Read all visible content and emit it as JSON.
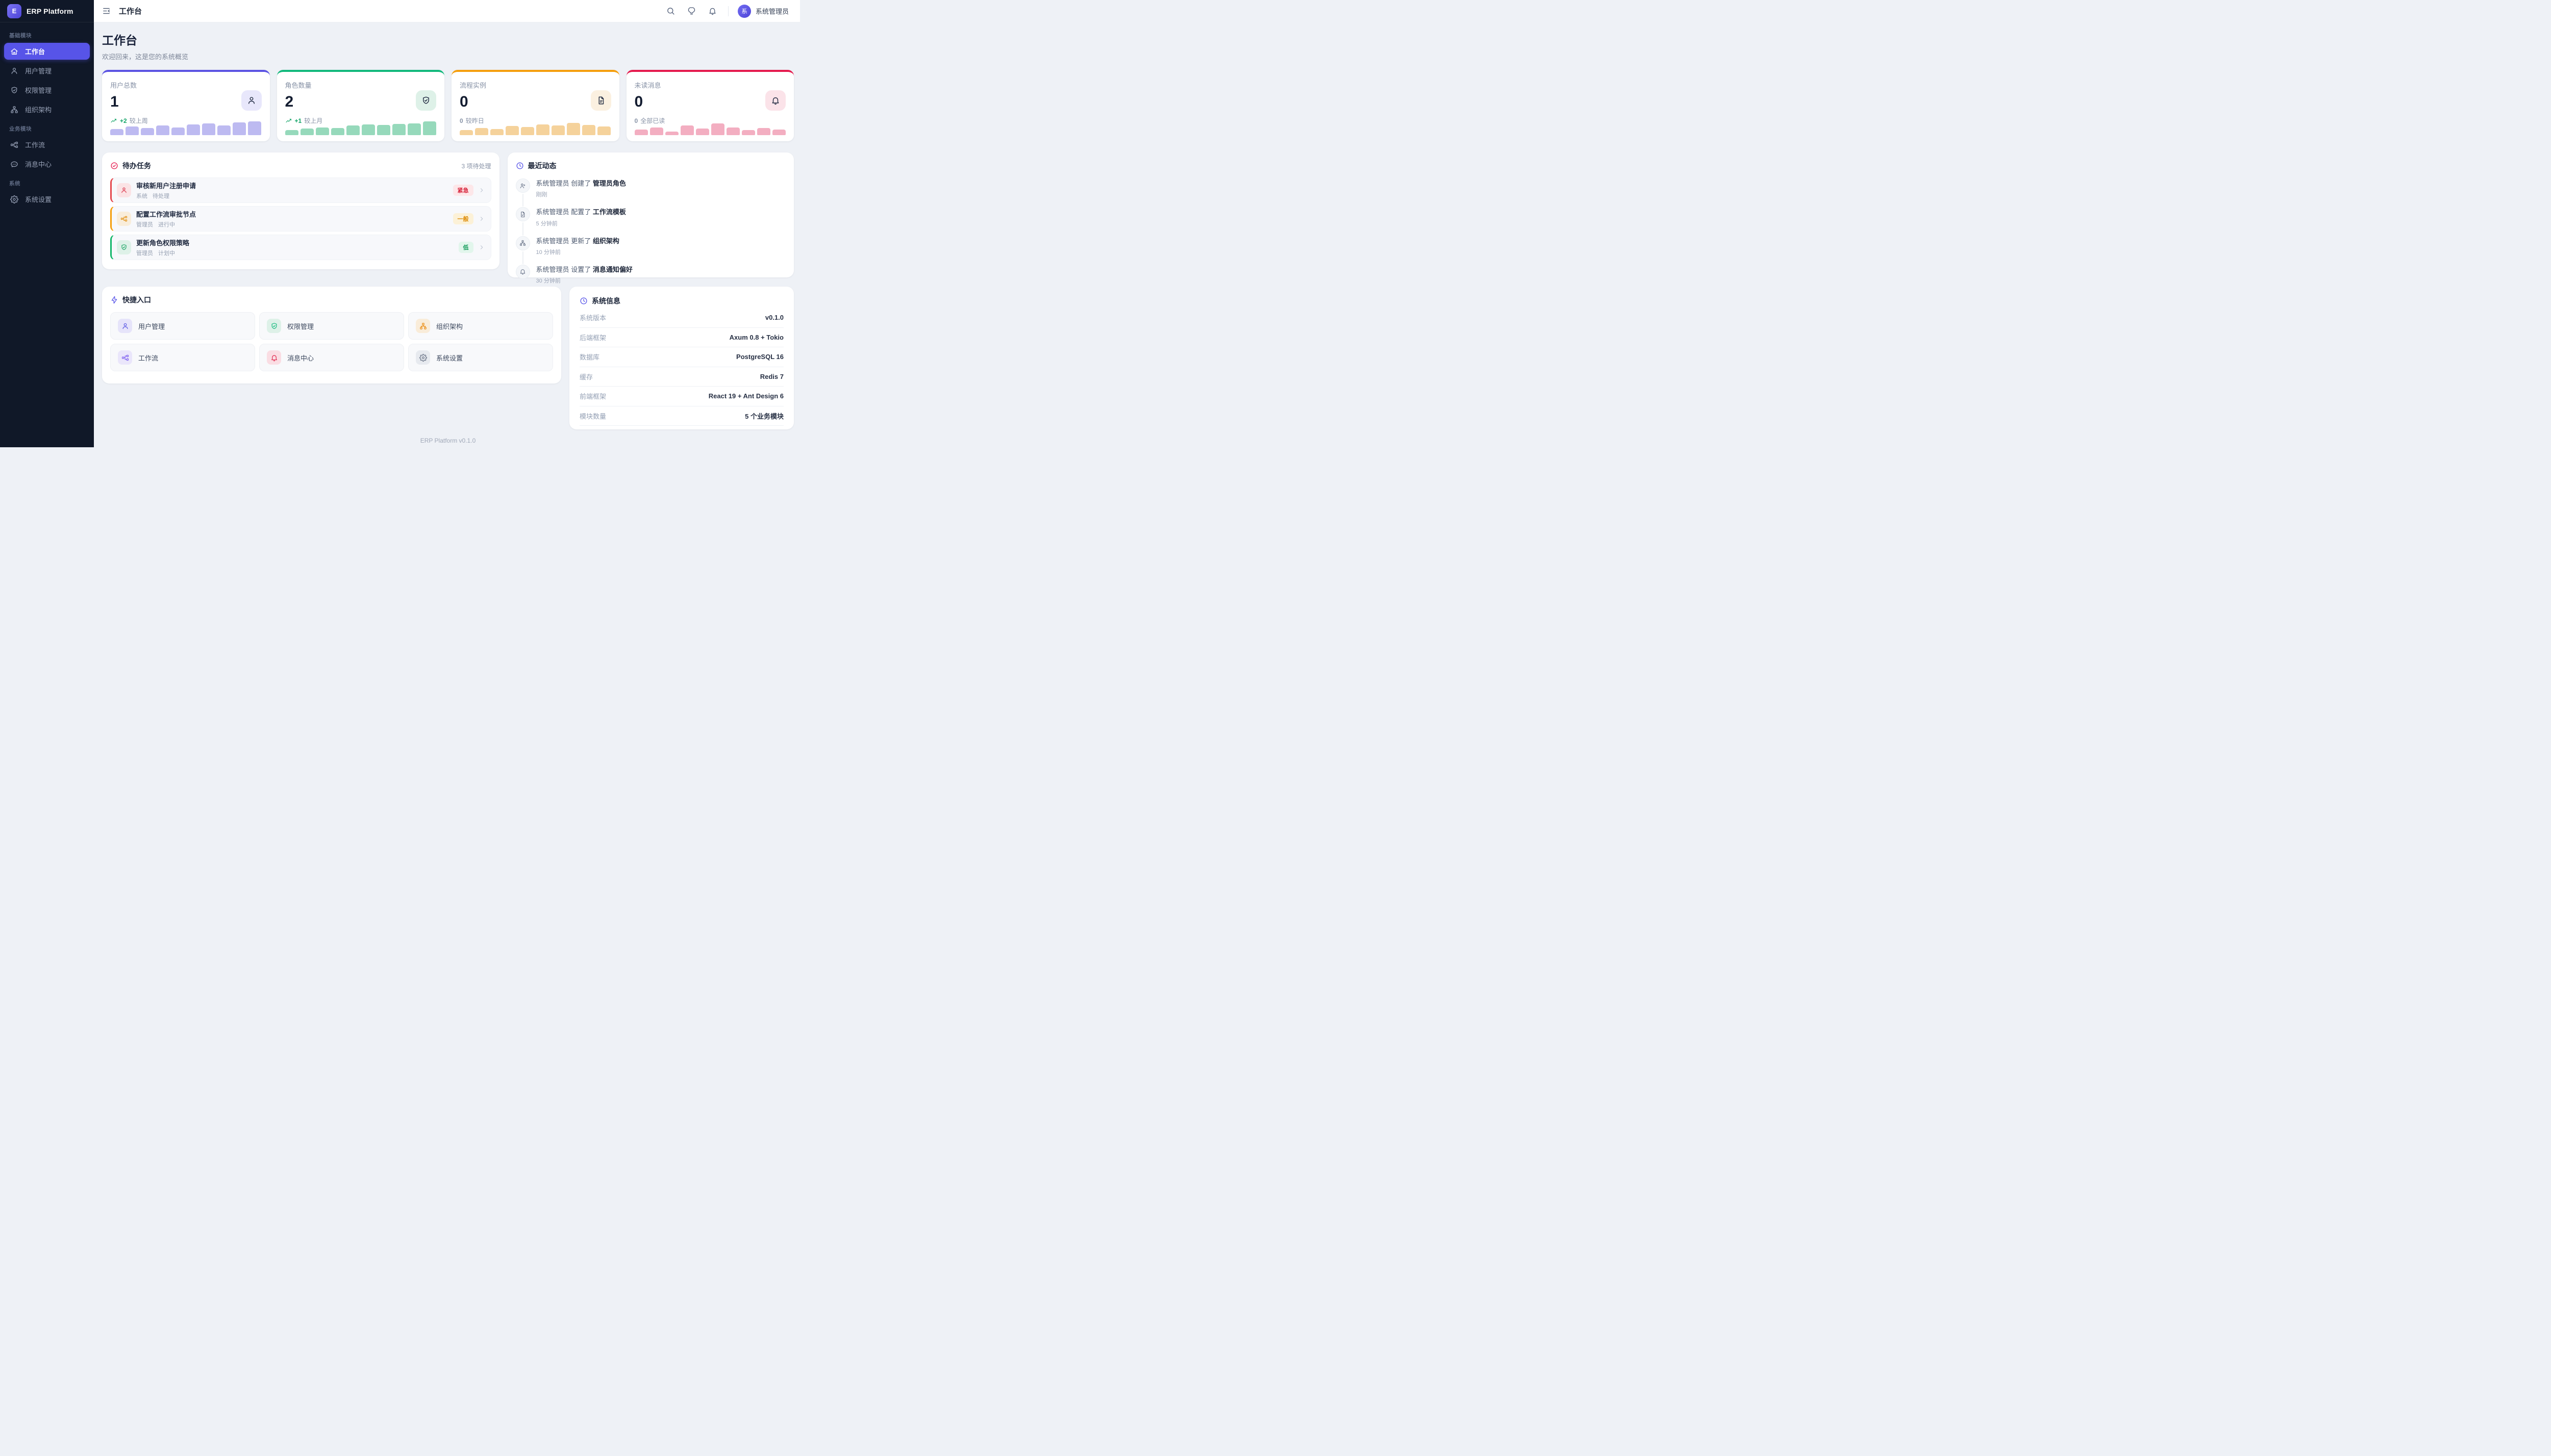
{
  "app": {
    "brand": "ERP Platform",
    "brand_initial": "E",
    "footer": "ERP Platform v0.1.0"
  },
  "header": {
    "title": "工作台",
    "icon_buttons": [
      "search",
      "bulb",
      "bell"
    ],
    "user_initial": "系",
    "user_name": "系统管理员"
  },
  "sidebar": {
    "sections": [
      {
        "label": "基础模块",
        "items": [
          {
            "label": "工作台",
            "icon": "home",
            "active": true
          },
          {
            "label": "用户管理",
            "icon": "user"
          },
          {
            "label": "权限管理",
            "icon": "shield-check"
          },
          {
            "label": "组织架构",
            "icon": "org"
          }
        ]
      },
      {
        "label": "业务模块",
        "items": [
          {
            "label": "工作流",
            "icon": "workflow"
          },
          {
            "label": "消息中心",
            "icon": "chat"
          }
        ]
      },
      {
        "label": "系统",
        "items": [
          {
            "label": "系统设置",
            "icon": "gear"
          }
        ]
      }
    ]
  },
  "page": {
    "title": "工作台",
    "subtitle": "欢迎回来，这是您的系统概览"
  },
  "stats": [
    {
      "label": "用户总数",
      "value": "1",
      "icon": "user",
      "icon_bg": "#e8e7fb",
      "accent": "#5a52e3",
      "trend_icon": "trend-up",
      "trend_num": "+2",
      "trend_suffix": "较上周",
      "trend_color": "#12a467",
      "bar_color": "#bdbaf1",
      "bars": [
        35,
        50,
        40,
        55,
        45,
        62,
        68,
        55,
        73,
        78
      ]
    },
    {
      "label": "角色数量",
      "value": "2",
      "icon": "shield-check",
      "icon_bg": "#def1e8",
      "accent": "#10b87b",
      "trend_icon": "trend-up",
      "trend_num": "+1",
      "trend_suffix": "较上月",
      "trend_color": "#12a467",
      "bar_color": "#96d9bb",
      "bars": [
        30,
        38,
        45,
        42,
        55,
        62,
        58,
        65,
        68,
        78
      ]
    },
    {
      "label": "流程实例",
      "value": "0",
      "icon": "doc",
      "icon_bg": "#fbf0e0",
      "accent": "#f59e0b",
      "trend_icon": "",
      "trend_num": "0",
      "trend_suffix": "较昨日",
      "trend_color": "#8792a6",
      "bar_color": "#f5d29b",
      "bars": [
        28,
        42,
        36,
        52,
        48,
        62,
        55,
        70,
        58,
        50
      ]
    },
    {
      "label": "未读消息",
      "value": "0",
      "icon": "bell",
      "icon_bg": "#fbe3e9",
      "accent": "#e5184c",
      "trend_icon": "",
      "trend_num": "0",
      "trend_suffix": "全部已读",
      "trend_color": "#8792a6",
      "bar_color": "#f3aec1",
      "bars": [
        32,
        45,
        22,
        55,
        38,
        68,
        45,
        28,
        42,
        33
      ]
    }
  ],
  "todo": {
    "title": "待办任务",
    "count_text": "3 项待处理",
    "header_color": "#e5184c",
    "tasks": [
      {
        "title": "审核新用户注册申请",
        "source": "系统",
        "status": "待处理",
        "priority": "紧急",
        "icon": "user",
        "accent": "#e5484d",
        "icon_bg": "#fbe3e5",
        "icon_color": "#d7263d",
        "badge_bg": "#fde7e9",
        "badge_color": "#d7263d"
      },
      {
        "title": "配置工作流审批节点",
        "source": "管理员",
        "status": "进行中",
        "priority": "一般",
        "icon": "workflow",
        "accent": "#f59e0b",
        "icon_bg": "#f9edda",
        "icon_color": "#e08c0b",
        "badge_bg": "#fcf1d7",
        "badge_color": "#dd8a04"
      },
      {
        "title": "更新角色权限策略",
        "source": "管理员",
        "status": "计划中",
        "priority": "低",
        "icon": "shield-check",
        "accent": "#12b76a",
        "icon_bg": "#def1e8",
        "icon_color": "#12a05e",
        "badge_bg": "#e2f6ec",
        "badge_color": "#119a58"
      }
    ]
  },
  "activity": {
    "title": "最近动态",
    "header_color": "#5754e8",
    "items": [
      {
        "actor": "系统管理员",
        "action": "创建了",
        "object": "管理员角色",
        "time": "刚刚",
        "icon": "user-plus"
      },
      {
        "actor": "系统管理员",
        "action": "配置了",
        "object": "工作流模板",
        "time": "5 分钟前",
        "icon": "doc-check"
      },
      {
        "actor": "系统管理员",
        "action": "更新了",
        "object": "组织架构",
        "time": "10 分钟前",
        "icon": "org"
      },
      {
        "actor": "系统管理员",
        "action": "设置了",
        "object": "消息通知偏好",
        "time": "30 分钟前",
        "icon": "bell"
      }
    ]
  },
  "quick": {
    "title": "快捷入口",
    "header_color": "#5754e8",
    "links": [
      {
        "label": "用户管理",
        "icon": "user",
        "icon_color": "#5855e4",
        "icon_bg": "#e6e4fa"
      },
      {
        "label": "权限管理",
        "icon": "shield-check",
        "icon_color": "#10b87b",
        "icon_bg": "#def1e8"
      },
      {
        "label": "组织架构",
        "icon": "org",
        "icon_color": "#ea8a0e",
        "icon_bg": "#f9ecd9"
      },
      {
        "label": "工作流",
        "icon": "workflow",
        "icon_color": "#7b5cf0",
        "icon_bg": "#eae6fb"
      },
      {
        "label": "消息中心",
        "icon": "bell",
        "icon_color": "#e0244a",
        "icon_bg": "#fadde3"
      },
      {
        "label": "系统设置",
        "icon": "gear",
        "icon_color": "#697386",
        "icon_bg": "#e7eaef"
      }
    ]
  },
  "sysinfo": {
    "title": "系统信息",
    "header_color": "#5754e8",
    "rows": [
      {
        "label": "系统版本",
        "value": "v0.1.0"
      },
      {
        "label": "后端框架",
        "value": "Axum 0.8 + Tokio"
      },
      {
        "label": "数据库",
        "value": "PostgreSQL 16"
      },
      {
        "label": "缓存",
        "value": "Redis 7"
      },
      {
        "label": "前端框架",
        "value": "React 19 + Ant Design 6"
      },
      {
        "label": "模块数量",
        "value": "5 个业务模块"
      }
    ]
  }
}
